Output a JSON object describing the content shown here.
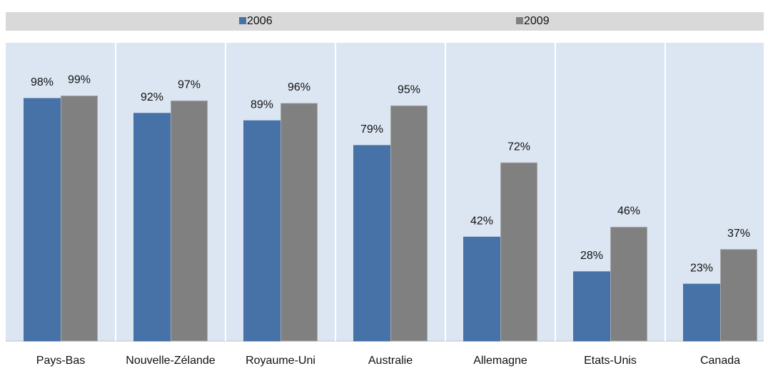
{
  "chart_data": {
    "type": "bar",
    "categories": [
      "Pays-Bas",
      "Nouvelle-Zélande",
      "Royaume-Uni",
      "Australie",
      "Allemagne",
      "Etats-Unis",
      "Canada"
    ],
    "series": [
      {
        "name": "2006",
        "color": "#4672a8",
        "values": [
          98,
          92,
          89,
          79,
          42,
          28,
          23
        ],
        "value_labels": [
          "98%",
          "92%",
          "89%",
          "79%",
          "42%",
          "28%",
          "23%"
        ]
      },
      {
        "name": "2009",
        "color": "#808080",
        "values": [
          99,
          97,
          96,
          95,
          72,
          46,
          37
        ],
        "value_labels": [
          "99%",
          "97%",
          "96%",
          "95%",
          "72%",
          "46%",
          "37%"
        ]
      }
    ],
    "ylim": [
      0,
      120
    ],
    "legend": "top"
  }
}
